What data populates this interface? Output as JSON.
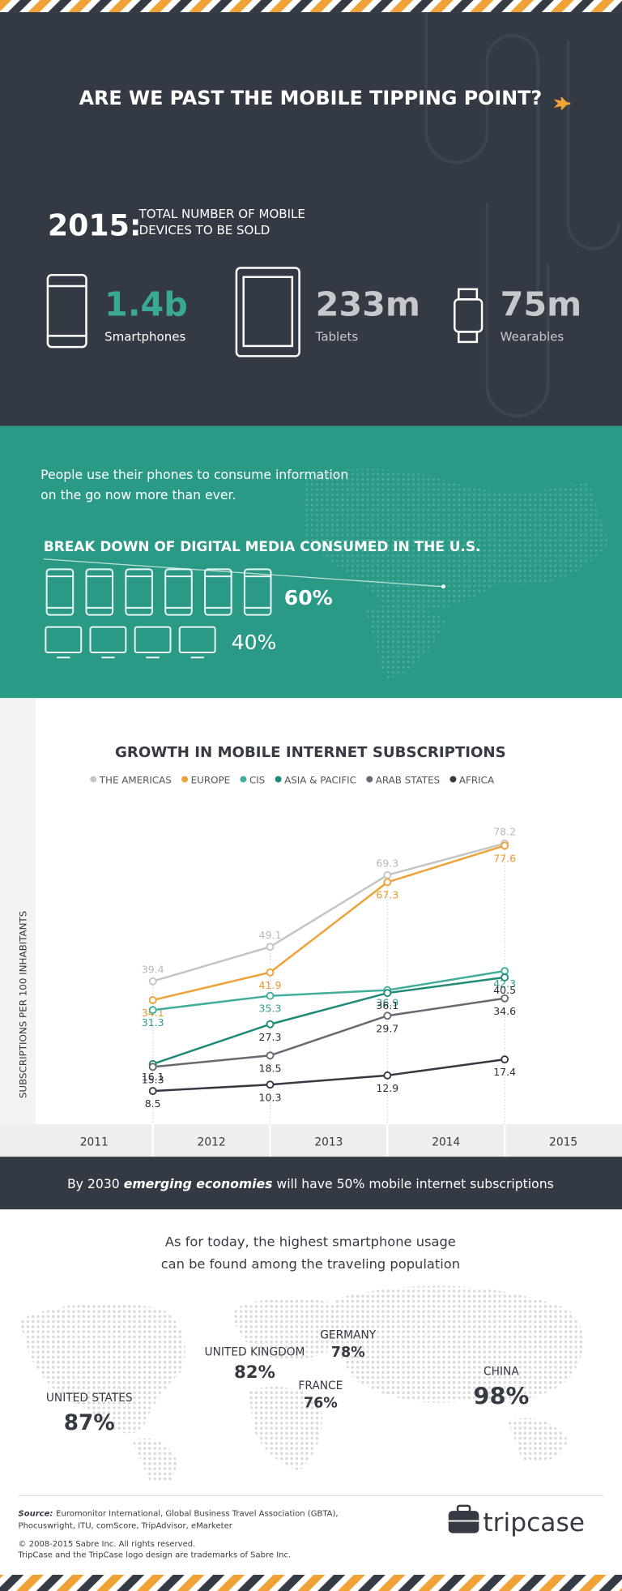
{
  "header": {
    "title": "ARE WE PAST THE MOBILE TIPPING POINT?"
  },
  "devices": {
    "year": "2015:",
    "caption": [
      "TOTAL NUMBER OF MOBILE",
      "DEVICES TO BE SOLD"
    ],
    "items": [
      {
        "value": "1.4b",
        "label": "Smartphones"
      },
      {
        "value": "233m",
        "label": "Tablets"
      },
      {
        "value": "75m",
        "label": "Wearables"
      }
    ]
  },
  "media": {
    "intro": [
      "People use their phones to consume information",
      "on the go now more than ever."
    ],
    "title": "BREAK DOWN OF DIGITAL MEDIA CONSUMED IN THE U.S.",
    "mobile_share": "60%",
    "desktop_share": "40%"
  },
  "chart_data": {
    "type": "line",
    "title": "GROWTH IN MOBILE INTERNET SUBSCRIPTIONS",
    "y_label": "SUBSCRIPTIONS PER 100 INHABITANTS",
    "x": [
      2011.5,
      2012.5,
      2013.5,
      2014.5
    ],
    "xlim": [
      2010.5,
      2015.5
    ],
    "xticks": [
      2011,
      2012,
      2013,
      2014,
      2015
    ],
    "ylim": [
      0,
      90
    ],
    "series": [
      {
        "name": "THE AMERICAS",
        "color": "#c4c4c4",
        "values": [
          39.4,
          49.1,
          69.3,
          78.2
        ]
      },
      {
        "name": "EUROPE",
        "color": "#eea23a",
        "values": [
          34.1,
          41.9,
          67.3,
          77.6
        ]
      },
      {
        "name": "CIS",
        "color": "#42ad9b",
        "values": [
          31.3,
          35.3,
          36.9,
          42.3
        ]
      },
      {
        "name": "ASIA & PACIFIC",
        "color": "#1f8a78",
        "values": [
          16.1,
          27.3,
          36.1,
          40.5
        ]
      },
      {
        "name": "ARAB STATES",
        "color": "#666b73",
        "values": [
          15.3,
          18.5,
          29.7,
          34.6
        ]
      },
      {
        "name": "AFRICA",
        "color": "#353a43",
        "values": [
          8.5,
          10.3,
          12.9,
          17.4
        ]
      }
    ]
  },
  "banner": {
    "before": "By 2030 ",
    "emphasis": "emerging economies",
    "after": " will have 50% mobile internet subscriptions"
  },
  "travel": {
    "intro": [
      "As for today, the highest smartphone usage",
      "can be found among the traveling population"
    ],
    "countries": [
      {
        "name": "UNITED STATES",
        "share": "87%"
      },
      {
        "name": "UNITED KINGDOM",
        "share": "82%"
      },
      {
        "name": "GERMANY",
        "share": "78%"
      },
      {
        "name": "FRANCE",
        "share": "76%"
      },
      {
        "name": "CHINA",
        "share": "98%"
      }
    ]
  },
  "footer": {
    "source_label": "Source:",
    "source": [
      "Euromonitor International, Global Business Travel Association (GBTA),",
      "Phocuswright, ITU, comScore, TripAdvisor, eMarketer"
    ],
    "copyright": [
      "© 2008-2015 Sabre Inc. All rights reserved.",
      "TripCase and the TripCase logo design are trademarks of Sabre Inc."
    ],
    "brand": "tripcase"
  }
}
